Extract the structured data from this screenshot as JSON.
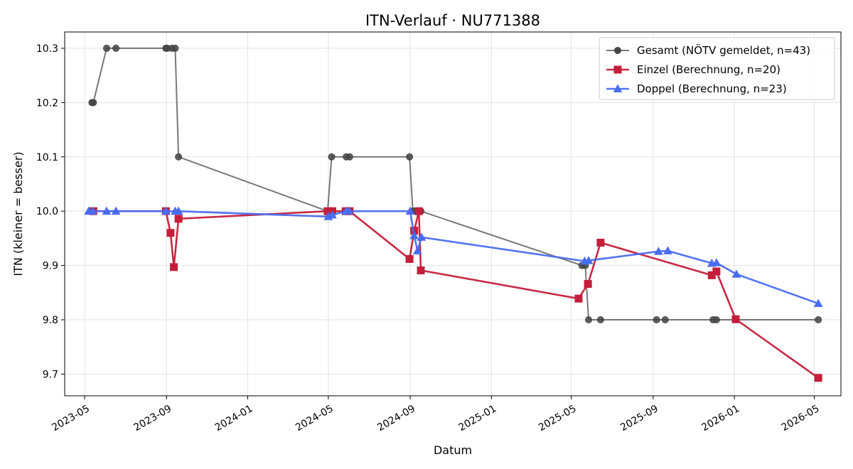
{
  "chart_data": {
    "type": "line",
    "title": "ITN-Verlauf · NU771388",
    "xlabel": "Datum",
    "ylabel": "ITN  (kleiner = besser)",
    "x_type": "date",
    "xlim": [
      "2023-04-01",
      "2026-06-10"
    ],
    "ylim": [
      9.66,
      10.33
    ],
    "x_ticks": [
      "2023-05-01",
      "2023-09-01",
      "2024-01-01",
      "2024-05-01",
      "2024-09-01",
      "2025-01-01",
      "2025-05-01",
      "2025-09-01",
      "2026-01-01",
      "2026-05-01"
    ],
    "x_tick_labels": [
      "2023-05",
      "2023-09",
      "2024-01",
      "2024-05",
      "2024-09",
      "2025-01",
      "2025-05",
      "2025-09",
      "2026-01",
      "2026-05"
    ],
    "y_ticks": [
      9.7,
      9.8,
      9.9,
      10.0,
      10.1,
      10.2,
      10.3
    ],
    "y_tick_labels": [
      "9.7",
      "9.8",
      "9.9",
      "10.0",
      "10.1",
      "10.2",
      "10.3"
    ],
    "grid": true,
    "legend_position": "top-right",
    "series": [
      {
        "name": "Gesamt (NÖTV gemeldet, n=43)",
        "color": "#444444",
        "marker": "circle",
        "points": [
          [
            "2023-05-12",
            10.2
          ],
          [
            "2023-05-14",
            10.2
          ],
          [
            "2023-06-03",
            10.3
          ],
          [
            "2023-06-17",
            10.3
          ],
          [
            "2023-08-31",
            10.3
          ],
          [
            "2023-09-02",
            10.3
          ],
          [
            "2023-09-09",
            10.3
          ],
          [
            "2023-09-14",
            10.3
          ],
          [
            "2023-09-19",
            10.1
          ],
          [
            "2024-04-30",
            10.0
          ],
          [
            "2024-05-06",
            10.1
          ],
          [
            "2024-05-28",
            10.1
          ],
          [
            "2024-06-02",
            10.1
          ],
          [
            "2024-08-31",
            10.1
          ],
          [
            "2024-09-05",
            10.0
          ],
          [
            "2024-09-08",
            10.0
          ],
          [
            "2024-09-13",
            10.0
          ],
          [
            "2024-09-17",
            10.0
          ],
          [
            "2025-05-17",
            9.9
          ],
          [
            "2025-05-22",
            9.9
          ],
          [
            "2025-05-27",
            9.8
          ],
          [
            "2025-06-14",
            9.8
          ],
          [
            "2025-09-06",
            9.8
          ],
          [
            "2025-09-19",
            9.8
          ],
          [
            "2025-11-30",
            9.8
          ],
          [
            "2025-12-05",
            9.8
          ],
          [
            "2026-05-07",
            9.8
          ]
        ]
      },
      {
        "name": "Einzel (Berechnung, n=20)",
        "color": "#c41e3a",
        "marker": "square",
        "points": [
          [
            "2023-05-14",
            10.0
          ],
          [
            "2023-08-31",
            10.0
          ],
          [
            "2023-09-07",
            9.96
          ],
          [
            "2023-09-12",
            9.897
          ],
          [
            "2023-09-19",
            9.986
          ],
          [
            "2024-04-30",
            10.0
          ],
          [
            "2024-05-07",
            10.0
          ],
          [
            "2024-05-27",
            10.0
          ],
          [
            "2024-06-02",
            10.0
          ],
          [
            "2024-08-31",
            9.912
          ],
          [
            "2024-09-07",
            9.964
          ],
          [
            "2024-09-14",
            10.0
          ],
          [
            "2024-09-17",
            9.891
          ],
          [
            "2025-05-12",
            9.839
          ],
          [
            "2025-05-26",
            9.866
          ],
          [
            "2025-06-14",
            9.942
          ],
          [
            "2025-11-28",
            9.882
          ],
          [
            "2025-12-05",
            9.889
          ],
          [
            "2026-01-03",
            9.801
          ],
          [
            "2026-05-07",
            9.693
          ]
        ]
      },
      {
        "name": "Doppel (Berechnung, n=23)",
        "color": "#4a6cf0",
        "marker": "triangle",
        "points": [
          [
            "2023-05-07",
            10.0
          ],
          [
            "2023-05-13",
            10.0
          ],
          [
            "2023-06-03",
            10.0
          ],
          [
            "2023-06-17",
            10.0
          ],
          [
            "2023-08-31",
            10.0
          ],
          [
            "2023-09-14",
            10.0
          ],
          [
            "2023-09-19",
            10.0
          ],
          [
            "2024-05-01",
            9.99
          ],
          [
            "2024-05-07",
            9.993
          ],
          [
            "2024-05-28",
            10.0
          ],
          [
            "2024-06-01",
            10.0
          ],
          [
            "2024-09-01",
            10.0
          ],
          [
            "2024-09-07",
            9.955
          ],
          [
            "2024-09-12",
            9.927
          ],
          [
            "2024-09-18",
            9.952
          ],
          [
            "2025-05-21",
            9.908
          ],
          [
            "2025-05-27",
            9.909
          ],
          [
            "2025-09-09",
            9.926
          ],
          [
            "2025-09-23",
            9.927
          ],
          [
            "2025-11-28",
            9.904
          ],
          [
            "2025-12-05",
            9.905
          ],
          [
            "2026-01-04",
            9.884
          ],
          [
            "2026-05-07",
            9.83
          ]
        ]
      }
    ]
  }
}
